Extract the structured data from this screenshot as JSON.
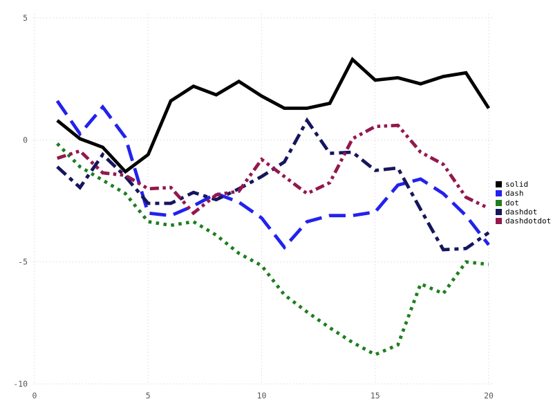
{
  "figure": {
    "background": "#ffffff",
    "grid_color": "#dadae4",
    "tick_label_color": "#55555f"
  },
  "chart_data": {
    "type": "line",
    "title": "",
    "xlabel": "",
    "ylabel": "",
    "xlim": [
      0,
      20
    ],
    "ylim": [
      -10,
      5
    ],
    "x_ticks": [
      "0",
      "5",
      "10",
      "15",
      "20"
    ],
    "y_ticks": [
      "5",
      "0",
      "-5",
      "-10"
    ],
    "x_tick_values": [
      0,
      5,
      10,
      15,
      20
    ],
    "y_tick_values": [
      5,
      0,
      -5,
      -10
    ],
    "grid": true,
    "legend_position": "right",
    "x": [
      1,
      2,
      3,
      4,
      5,
      6,
      7,
      8,
      9,
      10,
      11,
      12,
      13,
      14,
      15,
      16,
      17,
      18,
      19,
      20
    ],
    "series": [
      {
        "name": "solid",
        "color": "#000000",
        "line_style": "solid",
        "values": [
          0.8,
          0.05,
          -0.3,
          -1.3,
          -0.6,
          1.6,
          2.2,
          1.85,
          2.4,
          1.8,
          1.3,
          1.3,
          1.5,
          3.3,
          2.45,
          2.55,
          2.3,
          2.6,
          2.75,
          1.3
        ]
      },
      {
        "name": "dash",
        "color": "#2222ee",
        "line_style": "dash",
        "values": [
          1.6,
          0.25,
          1.35,
          0.1,
          -3.0,
          -3.1,
          -2.7,
          -2.2,
          -2.55,
          -3.2,
          -4.4,
          -3.35,
          -3.1,
          -3.1,
          -2.95,
          -1.85,
          -1.6,
          -2.2,
          -3.1,
          -4.3
        ]
      },
      {
        "name": "dot",
        "color": "#1e7e1e",
        "line_style": "dot",
        "values": [
          -0.15,
          -1.1,
          -1.65,
          -2.2,
          -3.35,
          -3.5,
          -3.35,
          -3.9,
          -4.65,
          -5.15,
          -6.35,
          -7.05,
          -7.7,
          -8.3,
          -8.8,
          -8.4,
          -5.9,
          -6.3,
          -5.0,
          -5.1
        ]
      },
      {
        "name": "dashdot",
        "color": "#16165e",
        "line_style": "dashdot",
        "values": [
          -1.1,
          -1.95,
          -0.6,
          -1.5,
          -2.6,
          -2.6,
          -2.15,
          -2.45,
          -2.0,
          -1.5,
          -0.9,
          0.8,
          -0.55,
          -0.5,
          -1.25,
          -1.15,
          -2.85,
          -4.5,
          -4.45,
          -3.8
        ]
      },
      {
        "name": "dashdotdot",
        "color": "#93184d",
        "line_style": "dashdotdot",
        "values": [
          -0.75,
          -0.45,
          -1.35,
          -1.45,
          -2.0,
          -1.95,
          -3.0,
          -2.25,
          -2.1,
          -0.8,
          -1.5,
          -2.2,
          -1.75,
          0.05,
          0.55,
          0.6,
          -0.5,
          -1.0,
          -2.35,
          -2.8
        ]
      }
    ]
  }
}
